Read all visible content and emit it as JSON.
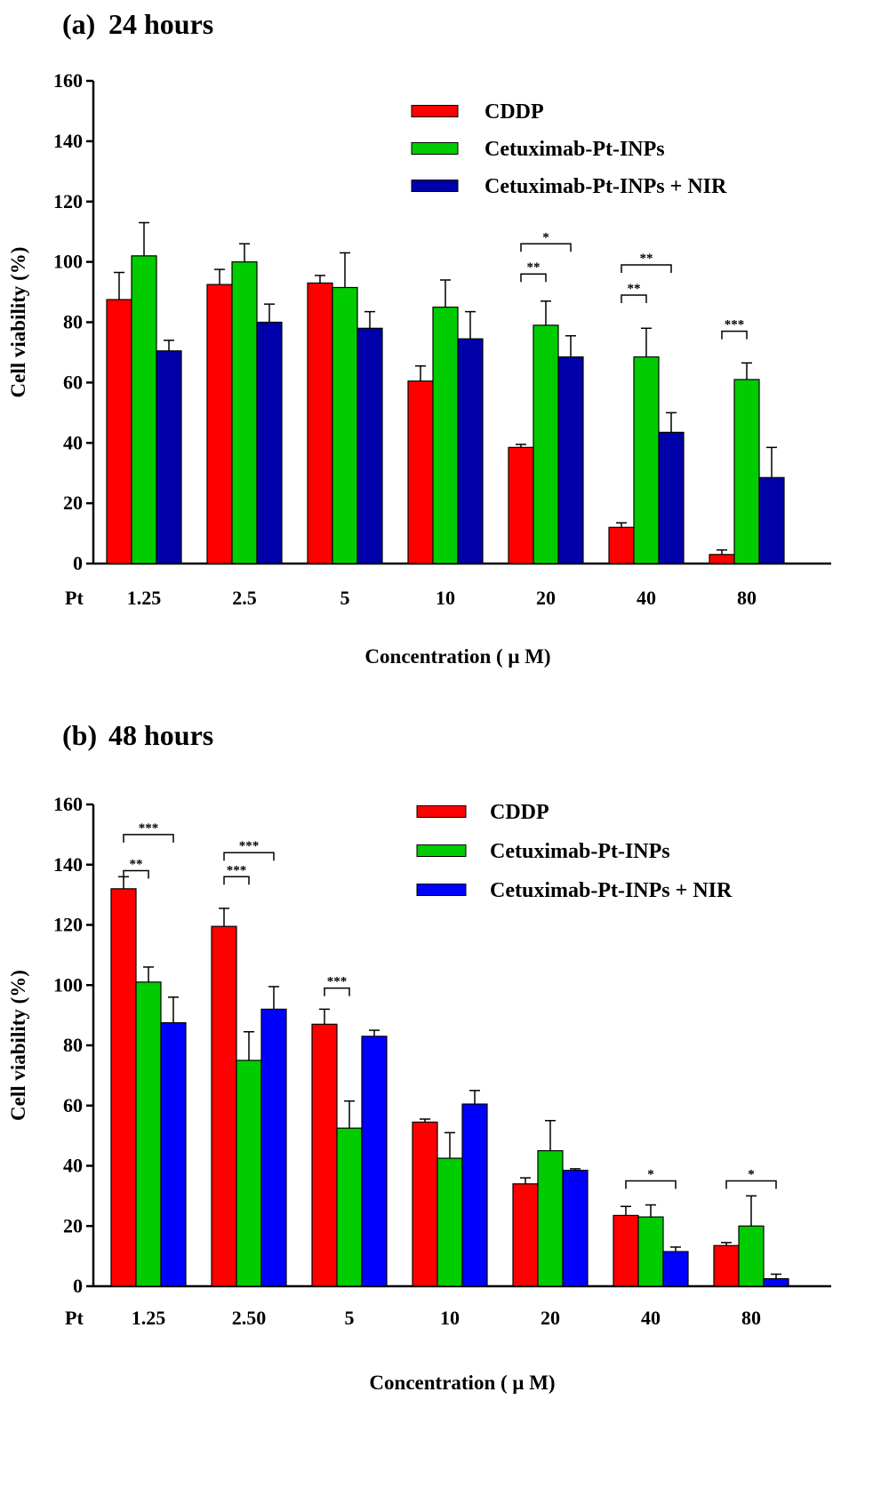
{
  "chart_data": [
    {
      "type": "bar",
      "panel_label": "(a)",
      "title": "24 hours",
      "xlabel": "Concentration ( μ M)",
      "ylabel": "Cell viability (%)",
      "x_prefix": "Pt",
      "ylim": [
        0,
        160
      ],
      "yticks": [
        0,
        20,
        40,
        60,
        80,
        100,
        120,
        140,
        160
      ],
      "categories": [
        "1.25",
        "2.5",
        "5",
        "10",
        "20",
        "40",
        "80"
      ],
      "legend_position": "top-right",
      "series": [
        {
          "name": "CDDP",
          "color": "#ff0000",
          "values": [
            87.5,
            92.5,
            93,
            60.5,
            38.5,
            12,
            3
          ],
          "errors": [
            9,
            5,
            2.5,
            5,
            1,
            1.5,
            1.5
          ]
        },
        {
          "name": "Cetuximab-Pt-INPs",
          "color": "#00cc00",
          "values": [
            102,
            100,
            91.5,
            85,
            79,
            68.5,
            61
          ],
          "errors": [
            11,
            6,
            11.5,
            9,
            8,
            9.5,
            5.5
          ]
        },
        {
          "name": "Cetuximab-Pt-INPs + NIR",
          "color": "#0000aa",
          "values": [
            70.5,
            80,
            78,
            74.5,
            68.5,
            43.5,
            28.5
          ],
          "errors": [
            3.5,
            6,
            5.5,
            9,
            7,
            6.5,
            10
          ]
        }
      ],
      "significance": [
        {
          "category": 4,
          "from": 0,
          "to": 1,
          "stars": "**",
          "at": 96
        },
        {
          "category": 4,
          "from": 0,
          "to": 2,
          "stars": "*",
          "at": 106
        },
        {
          "category": 5,
          "from": 0,
          "to": 1,
          "stars": "**",
          "at": 89
        },
        {
          "category": 5,
          "from": 0,
          "to": 2,
          "stars": "**",
          "at": 99
        },
        {
          "category": 6,
          "from": 0,
          "to": 1,
          "stars": "***",
          "at": 77
        }
      ]
    },
    {
      "type": "bar",
      "panel_label": "(b)",
      "title": "48 hours",
      "xlabel": "Concentration ( μ M)",
      "ylabel": "Cell viability (%)",
      "x_prefix": "Pt",
      "ylim": [
        0,
        160
      ],
      "yticks": [
        0,
        20,
        40,
        60,
        80,
        100,
        120,
        140,
        160
      ],
      "categories": [
        "1.25",
        "2.50",
        "5",
        "10",
        "20",
        "40",
        "80"
      ],
      "legend_position": "top-right",
      "series": [
        {
          "name": "CDDP",
          "color": "#ff0000",
          "values": [
            132,
            119.5,
            87,
            54.5,
            34,
            23.5,
            13.5
          ],
          "errors": [
            4,
            6,
            5,
            1,
            2,
            3,
            1
          ]
        },
        {
          "name": "Cetuximab-Pt-INPs",
          "color": "#00cc00",
          "values": [
            101,
            75,
            52.5,
            42.5,
            45,
            23,
            20
          ],
          "errors": [
            5,
            9.5,
            9,
            8.5,
            10,
            4,
            10
          ]
        },
        {
          "name": "Cetuximab-Pt-INPs + NIR",
          "color": "#0000ff",
          "values": [
            87.5,
            92,
            83,
            60.5,
            38.5,
            11.5,
            2.5
          ],
          "errors": [
            8.5,
            7.5,
            2,
            4.5,
            0.5,
            1.5,
            1.5
          ]
        }
      ],
      "significance": [
        {
          "category": 0,
          "from": 0,
          "to": 1,
          "stars": "**",
          "at": 138
        },
        {
          "category": 0,
          "from": 0,
          "to": 2,
          "stars": "***",
          "at": 150
        },
        {
          "category": 1,
          "from": 0,
          "to": 1,
          "stars": "***",
          "at": 136
        },
        {
          "category": 1,
          "from": 0,
          "to": 2,
          "stars": "***",
          "at": 144
        },
        {
          "category": 2,
          "from": 0,
          "to": 1,
          "stars": "***",
          "at": 99
        },
        {
          "category": 5,
          "from": 0,
          "to": 2,
          "stars": "*",
          "at": 35
        },
        {
          "category": 6,
          "from": 0,
          "to": 2,
          "stars": "*",
          "at": 35
        }
      ]
    }
  ]
}
